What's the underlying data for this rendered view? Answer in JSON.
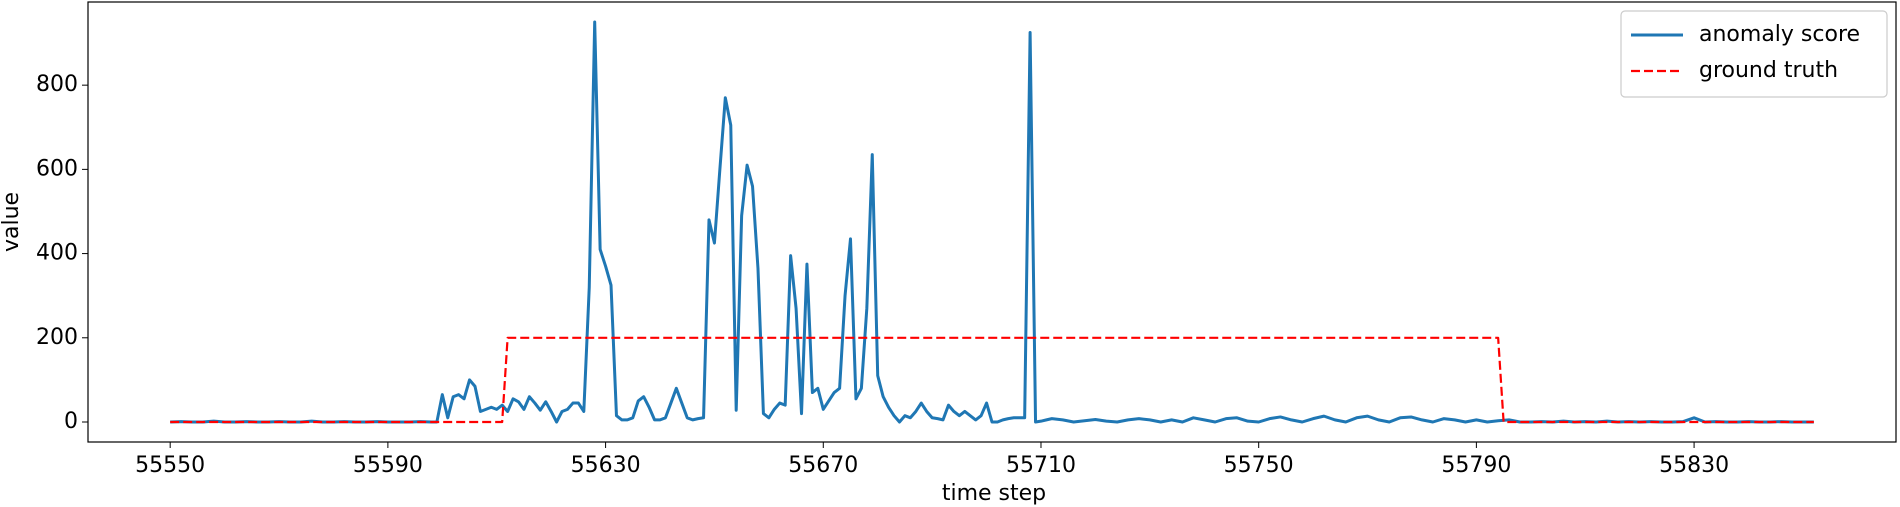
{
  "chart_data": {
    "type": "line",
    "xlabel": "time step",
    "ylabel": "value",
    "xlim": [
      55534.9,
      55867.1
    ],
    "ylim": [
      -47.5,
      997.5
    ],
    "xticks": [
      55550,
      55590,
      55630,
      55670,
      55710,
      55750,
      55790,
      55830
    ],
    "yticks": [
      0,
      200,
      400,
      600,
      800
    ],
    "grid": false,
    "legend": "upper right",
    "series": [
      {
        "name": "anomaly score",
        "color": "#1f77b4",
        "linestyle": "solid",
        "x": [
          55550,
          55552,
          55554,
          55556,
          55558,
          55560,
          55562,
          55564,
          55566,
          55568,
          55570,
          55572,
          55574,
          55576,
          55578,
          55580,
          55582,
          55584,
          55586,
          55588,
          55590,
          55592,
          55594,
          55596,
          55598,
          55599,
          55600,
          55601,
          55602,
          55603,
          55604,
          55605,
          55606,
          55607,
          55608,
          55609,
          55610,
          55611,
          55612,
          55613,
          55614,
          55615,
          55616,
          55617,
          55618,
          55619,
          55620,
          55621,
          55622,
          55623,
          55624,
          55625,
          55626,
          55627,
          55628,
          55629,
          55630,
          55631,
          55632,
          55633,
          55634,
          55635,
          55636,
          55637,
          55638,
          55639,
          55640,
          55641,
          55642,
          55643,
          55644,
          55645,
          55646,
          55647,
          55648,
          55649,
          55650,
          55651,
          55652,
          55653,
          55654,
          55655,
          55656,
          55657,
          55658,
          55659,
          55660,
          55661,
          55662,
          55663,
          55664,
          55665,
          55666,
          55667,
          55668,
          55669,
          55670,
          55671,
          55672,
          55673,
          55674,
          55675,
          55676,
          55677,
          55678,
          55679,
          55680,
          55681,
          55682,
          55683,
          55684,
          55685,
          55686,
          55687,
          55688,
          55689,
          55690,
          55691,
          55692,
          55693,
          55694,
          55695,
          55696,
          55697,
          55698,
          55699,
          55700,
          55701,
          55702,
          55703,
          55704,
          55705,
          55706,
          55707,
          55708,
          55709,
          55710,
          55711,
          55712,
          55714,
          55716,
          55718,
          55720,
          55722,
          55724,
          55726,
          55728,
          55730,
          55732,
          55734,
          55736,
          55738,
          55740,
          55742,
          55744,
          55746,
          55748,
          55750,
          55752,
          55754,
          55756,
          55758,
          55760,
          55762,
          55764,
          55766,
          55768,
          55770,
          55772,
          55774,
          55776,
          55778,
          55780,
          55782,
          55784,
          55786,
          55788,
          55790,
          55792,
          55794,
          55796,
          55798,
          55800,
          55802,
          55804,
          55806,
          55808,
          55810,
          55812,
          55814,
          55816,
          55818,
          55820,
          55822,
          55824,
          55826,
          55828,
          55830,
          55832,
          55834,
          55836,
          55838,
          55840,
          55842,
          55844,
          55846,
          55848,
          55850,
          55852
        ],
        "values": [
          0,
          1,
          0,
          0,
          2,
          0,
          0,
          1,
          0,
          0,
          1,
          0,
          0,
          2,
          0,
          0,
          1,
          0,
          0,
          1,
          0,
          0,
          0,
          1,
          0,
          0,
          65,
          10,
          60,
          65,
          55,
          100,
          85,
          25,
          30,
          35,
          30,
          40,
          25,
          55,
          48,
          30,
          60,
          45,
          28,
          48,
          25,
          0,
          25,
          30,
          45,
          45,
          25,
          320,
          950,
          410,
          370,
          325,
          15,
          5,
          5,
          10,
          50,
          60,
          35,
          5,
          5,
          10,
          45,
          80,
          45,
          10,
          5,
          8,
          10,
          480,
          425,
          600,
          770,
          705,
          28,
          490,
          610,
          560,
          365,
          20,
          10,
          30,
          45,
          40,
          395,
          270,
          20,
          375,
          70,
          80,
          30,
          50,
          70,
          80,
          300,
          435,
          55,
          80,
          270,
          635,
          110,
          60,
          35,
          15,
          0,
          15,
          10,
          25,
          45,
          25,
          10,
          8,
          5,
          40,
          25,
          15,
          25,
          15,
          5,
          15,
          45,
          0,
          0,
          5,
          8,
          10,
          10,
          10,
          925,
          0,
          2,
          5,
          8,
          5,
          0,
          3,
          6,
          2,
          0,
          5,
          8,
          5,
          0,
          5,
          0,
          10,
          5,
          0,
          8,
          10,
          2,
          0,
          8,
          12,
          5,
          0,
          8,
          14,
          5,
          0,
          10,
          14,
          5,
          0,
          10,
          12,
          5,
          0,
          8,
          5,
          0,
          5,
          0,
          3,
          5,
          0,
          0,
          1,
          0,
          2,
          0,
          1,
          0,
          2,
          0,
          1,
          0,
          1,
          0,
          0,
          1,
          10,
          0,
          1,
          0,
          0,
          1,
          0,
          0,
          1,
          0,
          0,
          0
        ]
      },
      {
        "name": "ground truth",
        "color": "#ff0000",
        "linestyle": "dashed",
        "x": [
          55550,
          55611,
          55612,
          55794,
          55795,
          55852
        ],
        "values": [
          0,
          0,
          200,
          200,
          0,
          0
        ]
      }
    ]
  }
}
